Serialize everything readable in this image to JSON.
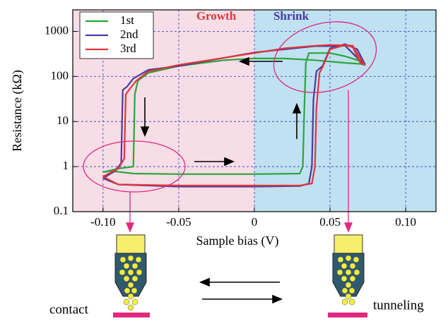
{
  "chart_data": {
    "type": "line",
    "xlabel": "Sample bias (V)",
    "ylabel": "Resistance (kΩ)",
    "xlim": [
      -0.12,
      0.12
    ],
    "ylim": [
      0.1,
      3000
    ],
    "log_y": true,
    "grid": true,
    "xticks": [
      {
        "value": -0.1,
        "label": "-0.10"
      },
      -0.05,
      0,
      0.05,
      {
        "value": 0.1,
        "label": "0.10"
      }
    ],
    "yticks": [
      0.1,
      1,
      10,
      100,
      1000
    ],
    "background_colors": {
      "negative": "#f6dde6",
      "positive": "#bfe1f1"
    },
    "legend": "upper left",
    "series": [
      {
        "name": "1st",
        "color": "#2aa63c",
        "x": [
          -0.1,
          -0.095,
          -0.08,
          -0.05,
          0,
          0.03,
          0.032,
          0.033,
          0.034,
          0.036,
          0.05,
          0.06,
          0.07,
          0.073,
          0.07,
          0.06,
          0.04,
          0.02,
          0,
          -0.02,
          -0.05,
          -0.07,
          -0.077,
          -0.079,
          -0.08,
          -0.09,
          -0.1
        ],
        "values": [
          0.75,
          0.8,
          0.7,
          0.68,
          0.68,
          0.7,
          1,
          20,
          200,
          330,
          330,
          280,
          220,
          180,
          190,
          200,
          230,
          250,
          250,
          230,
          170,
          120,
          80,
          40,
          1,
          0.9,
          0.75
        ]
      },
      {
        "name": "2nd",
        "color": "#4b3aa0",
        "x": [
          -0.1,
          -0.09,
          -0.05,
          0,
          0.03,
          0.036,
          0.038,
          0.039,
          0.041,
          0.045,
          0.05,
          0.06,
          0.068,
          0.073,
          0.07,
          0.06,
          0.05,
          0.04,
          0.02,
          0,
          -0.02,
          -0.05,
          -0.07,
          -0.08,
          -0.084,
          -0.087,
          -0.088,
          -0.092,
          -0.1
        ],
        "values": [
          0.55,
          0.4,
          0.36,
          0.36,
          0.37,
          0.42,
          1,
          30,
          130,
          170,
          420,
          520,
          400,
          190,
          220,
          480,
          470,
          470,
          400,
          340,
          260,
          170,
          140,
          90,
          60,
          50,
          1.2,
          0.8,
          0.55
        ]
      },
      {
        "name": "3rd",
        "color": "#e0363a",
        "x": [
          -0.1,
          -0.09,
          -0.05,
          0,
          0.03,
          0.038,
          0.04,
          0.041,
          0.043,
          0.045,
          0.05,
          0.06,
          0.065,
          0.07,
          0.073,
          0.07,
          0.065,
          0.06,
          0.05,
          0.04,
          0.02,
          0,
          -0.02,
          -0.05,
          -0.07,
          -0.078,
          -0.082,
          -0.085,
          -0.086,
          -0.09,
          -0.1
        ],
        "values": [
          0.6,
          0.4,
          0.38,
          0.38,
          0.38,
          0.42,
          1,
          20,
          120,
          160,
          400,
          500,
          480,
          250,
          180,
          200,
          450,
          490,
          500,
          480,
          420,
          330,
          260,
          180,
          130,
          80,
          55,
          40,
          1.5,
          0.9,
          0.6
        ]
      }
    ],
    "annotations": {
      "growth": "Growth",
      "shrink": "Shrink",
      "contact": "contact",
      "tunneling": "tunneling"
    }
  }
}
